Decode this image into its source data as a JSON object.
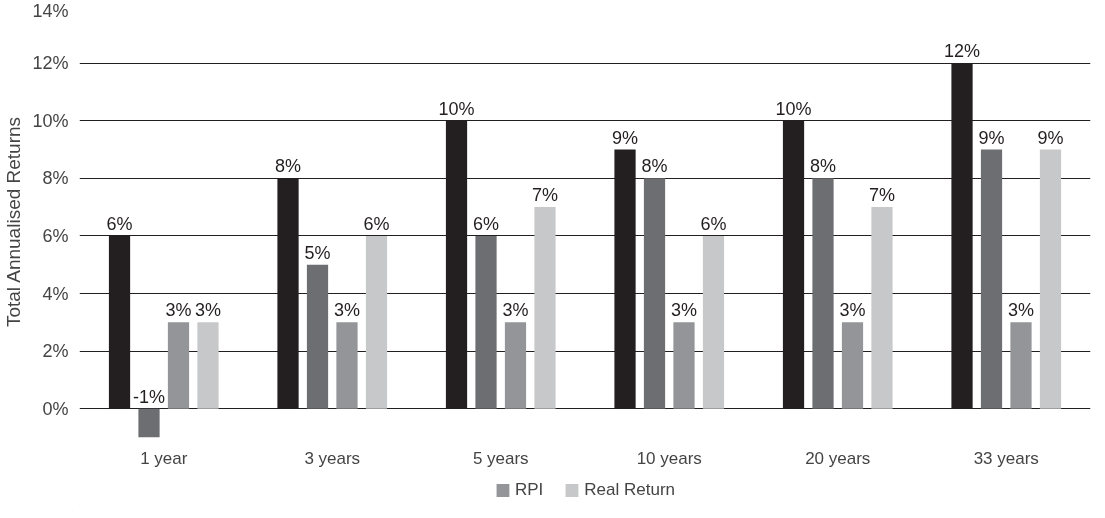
{
  "chart_data": {
    "type": "bar",
    "ylabel": "Total Annualised Returns",
    "categories": [
      "1 year",
      "3 years",
      "5 years",
      "10 years",
      "20 years",
      "33 years"
    ],
    "series": [
      {
        "color": "#231f20",
        "values": [
          6,
          8,
          10,
          9,
          10,
          12
        ],
        "value_labels": [
          "6%",
          "8%",
          "10%",
          "9%",
          "10%",
          "12%"
        ]
      },
      {
        "color": "#6d6e71",
        "values": [
          -1,
          5,
          6,
          8,
          8,
          9
        ],
        "value_labels": [
          "-1%",
          "5%",
          "6%",
          "8%",
          "8%",
          "9%"
        ]
      },
      {
        "name": "RPI",
        "color": "#939598",
        "values": [
          3,
          3,
          3,
          3,
          3,
          3
        ],
        "value_labels": [
          "3%",
          "3%",
          "3%",
          "3%",
          "3%",
          "3%"
        ]
      },
      {
        "name": "Real Return",
        "color": "#c7c8ca",
        "values": [
          3,
          6,
          7,
          6,
          7,
          9
        ],
        "value_labels": [
          "3%",
          "6%",
          "7%",
          "6%",
          "7%",
          "9%"
        ]
      }
    ],
    "ylim": [
      -1,
      14
    ],
    "yticks": [
      {
        "value": 0,
        "label": "0%"
      },
      {
        "value": 2,
        "label": "2%"
      },
      {
        "value": 4,
        "label": "4%"
      },
      {
        "value": 6,
        "label": "6%"
      },
      {
        "value": 8,
        "label": "8%"
      },
      {
        "value": 10,
        "label": "10%"
      },
      {
        "value": 12,
        "label": "12%"
      },
      {
        "value": 14,
        "label": "14%"
      }
    ],
    "grid": "y",
    "legend": "bottom"
  }
}
